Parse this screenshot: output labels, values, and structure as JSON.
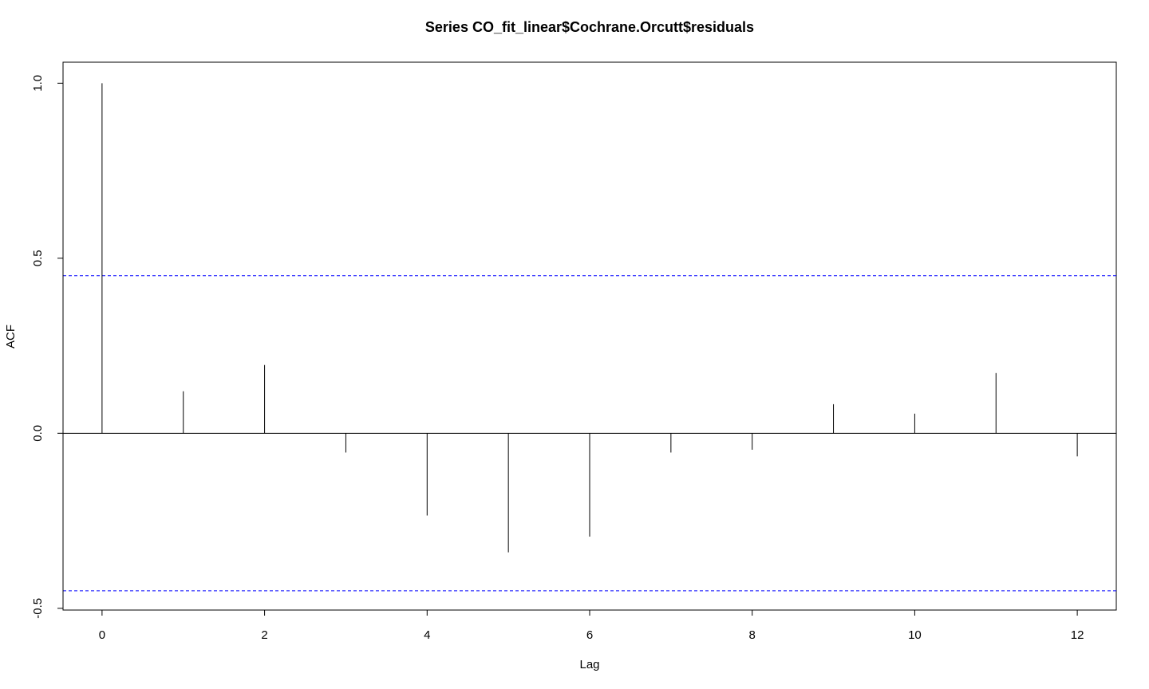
{
  "chart_data": {
    "type": "bar",
    "title": "Series  CO_fit_linear$Cochrane.Orcutt$residuals",
    "xlabel": "Lag",
    "ylabel": "ACF",
    "x": [
      0,
      1,
      2,
      3,
      4,
      5,
      6,
      7,
      8,
      9,
      10,
      11,
      12
    ],
    "values": [
      1.0,
      0.12,
      0.195,
      -0.055,
      -0.235,
      -0.34,
      -0.295,
      -0.055,
      -0.047,
      0.083,
      0.056,
      0.172,
      -0.066
    ],
    "confidence_bound": 0.45,
    "xlim": [
      -0.48,
      12.48
    ],
    "ylim": [
      -0.505,
      1.06
    ],
    "xticks": [
      0,
      2,
      4,
      6,
      8,
      10,
      12
    ],
    "xtick_labels": [
      "0",
      "2",
      "4",
      "6",
      "8",
      "10",
      "12"
    ],
    "yticks": [
      -0.5,
      0.0,
      0.5,
      1.0
    ],
    "ytick_labels": [
      "-0.5",
      "0.0",
      "0.5",
      "1.0"
    ],
    "grid": false,
    "colors": {
      "bars": "#000000",
      "confidence_lines": "#0000ff",
      "zero_line": "#000000",
      "frame": "#000000"
    }
  }
}
